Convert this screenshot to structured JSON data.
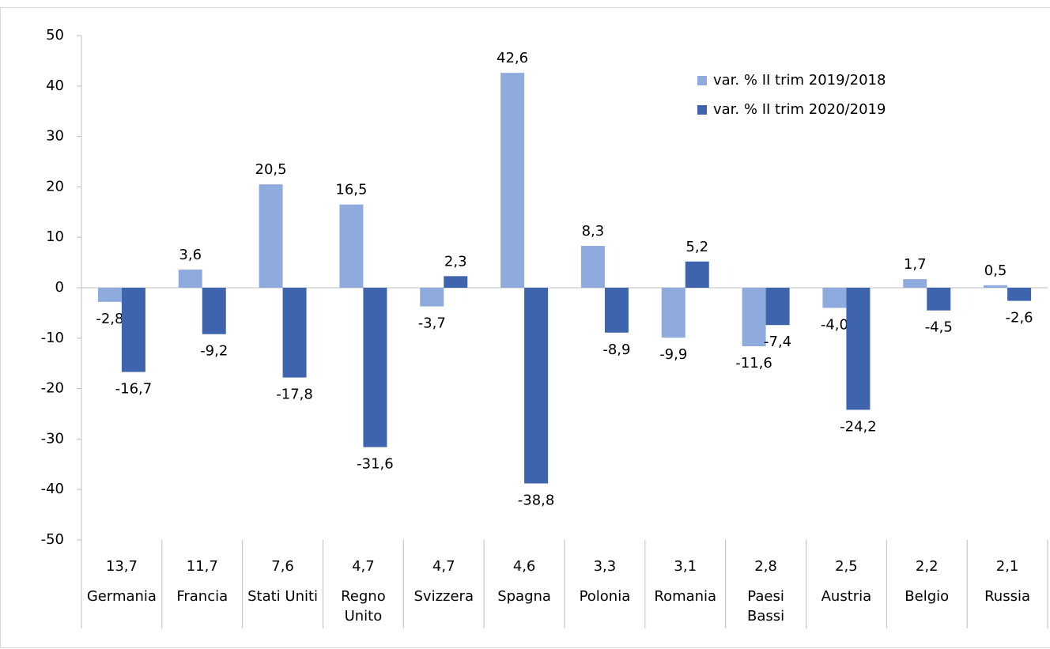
{
  "chart_data": {
    "type": "bar",
    "categories": [
      "Germania",
      "Francia",
      "Stati Uniti",
      "Regno\nUnito",
      "Svizzera",
      "Spagna",
      "Polonia",
      "Romania",
      "Paesi\nBassi",
      "Austria",
      "Belgio",
      "Russia"
    ],
    "category_values": [
      "13,7",
      "11,7",
      "7,6",
      "4,7",
      "4,7",
      "4,6",
      "3,3",
      "3,1",
      "2,8",
      "2,5",
      "2,2",
      "2,1"
    ],
    "series": [
      {
        "name": "var. % II trim 2019/2018",
        "color": "#8faadc",
        "values": [
          -2.8,
          3.6,
          20.5,
          16.5,
          -3.7,
          42.6,
          8.3,
          -9.9,
          -11.6,
          -4.0,
          1.7,
          0.5
        ],
        "value_labels": [
          "-2,8",
          "3,6",
          "20,5",
          "16,5",
          "-3,7",
          "42,6",
          "8,3",
          "-9,9",
          "-11,6",
          "-4,0",
          "1,7",
          "0,5"
        ]
      },
      {
        "name": "var. % II trim 2020/2019",
        "color": "#3d64ad",
        "values": [
          -16.7,
          -9.2,
          -17.8,
          -31.6,
          2.3,
          -38.8,
          -8.9,
          5.2,
          -7.4,
          -24.2,
          -4.5,
          -2.6
        ],
        "value_labels": [
          "-16,7",
          "-9,2",
          "-17,8",
          "-31,6",
          "2,3",
          "-38,8",
          "-8,9",
          "5,2",
          "-7,4",
          "-24,2",
          "-4,5",
          "-2,6"
        ]
      }
    ],
    "ylim": [
      -50,
      50
    ],
    "yticks": [
      -50,
      -40,
      -30,
      -20,
      -10,
      0,
      10,
      20,
      30,
      40,
      50
    ],
    "legend": "top-right"
  }
}
